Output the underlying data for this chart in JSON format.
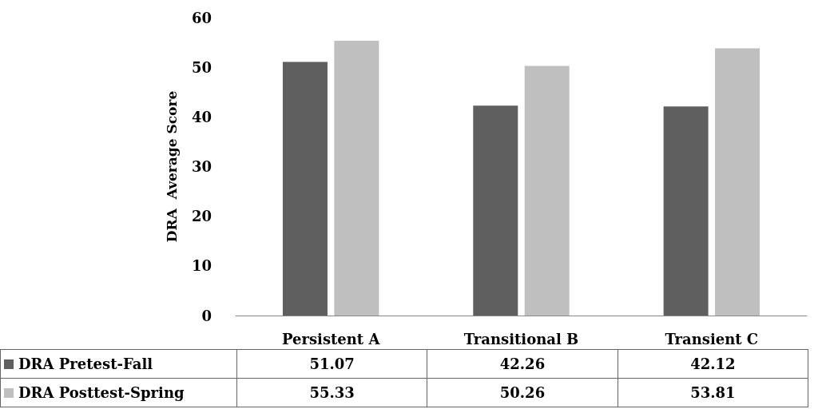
{
  "chart_data": {
    "type": "bar",
    "ylabel": "DRA  Average Score",
    "categories": [
      "Persistent A",
      "Transitional B",
      "Transient C"
    ],
    "series": [
      {
        "name": "DRA Pretest-Fall",
        "color": "#5f5f5f",
        "values": [
          51.07,
          42.26,
          42.12
        ]
      },
      {
        "name": "DRA Posttest-Spring",
        "color": "#bfbfbf",
        "values": [
          55.33,
          50.26,
          53.81
        ]
      }
    ],
    "ylim": [
      0,
      60
    ],
    "yticks": [
      0,
      10,
      20,
      30,
      40,
      50,
      60
    ],
    "grid": false,
    "legend": "bottom",
    "data_labels": true
  }
}
